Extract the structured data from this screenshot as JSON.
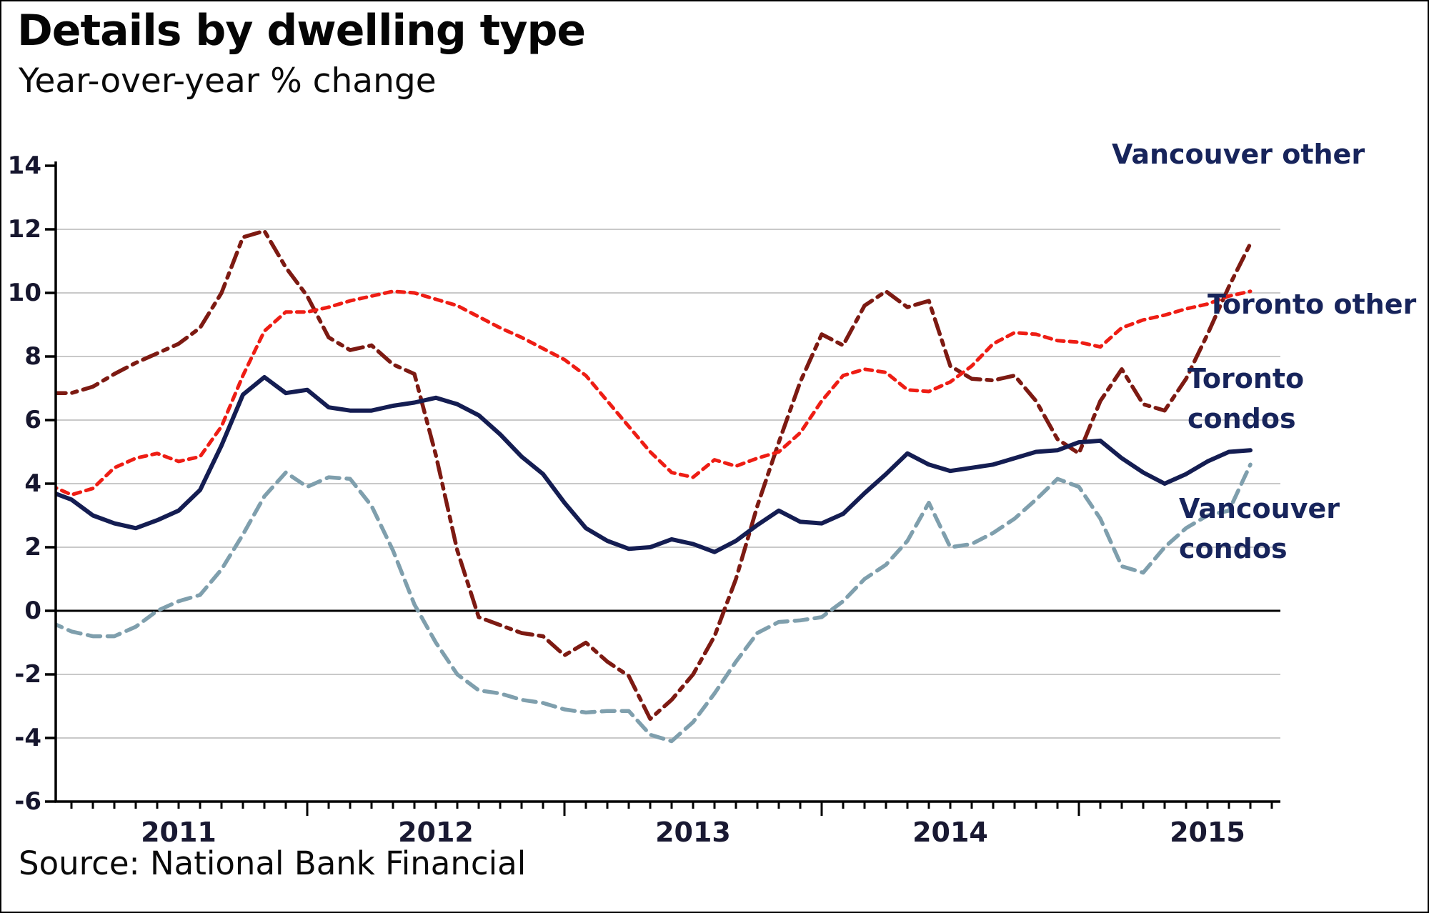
{
  "header": {
    "title": "Details by dwelling type",
    "subtitle": "Year-over-year % change"
  },
  "footer": {
    "source": "Source: National Bank Financial"
  },
  "legend": {
    "vancouver_other": "Vancouver other",
    "toronto_other": "Toronto other",
    "toronto_condos": "Toronto\ncondos",
    "vancouver_condos": "Vancouver\ncondos"
  },
  "chart_data": {
    "type": "line",
    "title": "Details by dwelling type",
    "subtitle": "Year-over-year % change",
    "ylabel": "Year-over-year % change",
    "xlabel": "",
    "ylim": [
      -6,
      14
    ],
    "y_tick_step": 2,
    "y_ticks": [
      14,
      12,
      10,
      8,
      6,
      4,
      2,
      0,
      -2,
      -4,
      -6
    ],
    "y_tick_labels": [
      "14",
      "12",
      "10",
      "8",
      "6",
      "4",
      "2",
      "0",
      "-2",
      "-4",
      "-6"
    ],
    "grid": true,
    "zero_line": true,
    "legend_position": "right-annotations",
    "x_unit": "month",
    "x_year_labels": [
      "2011",
      "2012",
      "2013",
      "2014",
      "2015"
    ],
    "x": [
      "2011-01",
      "2011-02",
      "2011-03",
      "2011-04",
      "2011-05",
      "2011-06",
      "2011-07",
      "2011-08",
      "2011-09",
      "2011-10",
      "2011-11",
      "2011-12",
      "2012-01",
      "2012-02",
      "2012-03",
      "2012-04",
      "2012-05",
      "2012-06",
      "2012-07",
      "2012-08",
      "2012-09",
      "2012-10",
      "2012-11",
      "2012-12",
      "2013-01",
      "2013-02",
      "2013-03",
      "2013-04",
      "2013-05",
      "2013-06",
      "2013-07",
      "2013-08",
      "2013-09",
      "2013-10",
      "2013-11",
      "2013-12",
      "2014-01",
      "2014-02",
      "2014-03",
      "2014-04",
      "2014-05",
      "2014-06",
      "2014-07",
      "2014-08",
      "2014-09",
      "2014-10",
      "2014-11",
      "2014-12",
      "2015-01",
      "2015-02",
      "2015-03",
      "2015-04",
      "2015-05",
      "2015-06",
      "2015-07",
      "2015-08",
      "2015-09"
    ],
    "series": [
      {
        "name": "Vancouver other",
        "color": "#7d1a12",
        "style": "dash-dot",
        "dash": "22 9 7 9",
        "width": 5.5,
        "values": [
          6.85,
          6.85,
          7.05,
          7.45,
          7.8,
          8.1,
          8.4,
          8.9,
          10.0,
          11.75,
          11.95,
          10.8,
          9.9,
          8.6,
          8.2,
          8.35,
          7.75,
          7.45,
          4.9,
          1.9,
          -0.2,
          -0.45,
          -0.7,
          -0.8,
          -1.4,
          -1.0,
          -1.6,
          -2.05,
          -3.4,
          -2.8,
          -2.0,
          -0.8,
          1.0,
          3.3,
          5.3,
          7.2,
          8.7,
          8.35,
          9.6,
          10.05,
          9.55,
          9.75,
          7.7,
          7.3,
          7.25,
          7.4,
          6.6,
          5.4,
          4.95,
          6.6,
          7.6,
          6.5,
          6.3,
          7.3,
          8.7,
          10.2,
          11.55
        ]
      },
      {
        "name": "Toronto other",
        "color": "#ee1d14",
        "style": "dashed",
        "dash": "10 8",
        "width": 5,
        "values": [
          3.95,
          3.65,
          3.85,
          4.5,
          4.8,
          4.95,
          4.7,
          4.85,
          5.8,
          7.4,
          8.8,
          9.4,
          9.4,
          9.55,
          9.75,
          9.9,
          10.05,
          10.0,
          9.8,
          9.6,
          9.25,
          8.9,
          8.6,
          8.25,
          7.9,
          7.4,
          6.6,
          5.8,
          5.0,
          4.35,
          4.2,
          4.75,
          4.55,
          4.8,
          5.0,
          5.6,
          6.6,
          7.4,
          7.6,
          7.5,
          6.95,
          6.9,
          7.2,
          7.7,
          8.4,
          8.75,
          8.7,
          8.5,
          8.45,
          8.3,
          8.9,
          9.15,
          9.3,
          9.5,
          9.65,
          9.9,
          10.05
        ]
      },
      {
        "name": "Toronto condos",
        "color": "#141d52",
        "style": "solid",
        "dash": "",
        "width": 6,
        "values": [
          3.75,
          3.5,
          3.0,
          2.75,
          2.6,
          2.85,
          3.15,
          3.8,
          5.2,
          6.8,
          7.35,
          6.85,
          6.95,
          6.4,
          6.3,
          6.3,
          6.45,
          6.55,
          6.7,
          6.5,
          6.15,
          5.55,
          4.85,
          4.3,
          3.4,
          2.6,
          2.2,
          1.95,
          2.0,
          2.25,
          2.1,
          1.85,
          2.2,
          2.7,
          3.15,
          2.8,
          2.75,
          3.05,
          3.7,
          4.3,
          4.95,
          4.6,
          4.4,
          4.5,
          4.6,
          4.8,
          5.0,
          5.05,
          5.3,
          5.35,
          4.8,
          4.35,
          4.0,
          4.3,
          4.7,
          5.0,
          5.05
        ]
      },
      {
        "name": "Vancouver condos",
        "color": "#7f9fad",
        "style": "dashed",
        "dash": "18 10",
        "width": 5.5,
        "values": [
          -0.35,
          -0.65,
          -0.8,
          -0.8,
          -0.5,
          0.0,
          0.3,
          0.5,
          1.3,
          2.4,
          3.6,
          4.35,
          3.9,
          4.2,
          4.15,
          3.3,
          1.9,
          0.2,
          -1.0,
          -2.0,
          -2.5,
          -2.6,
          -2.8,
          -2.9,
          -3.1,
          -3.2,
          -3.15,
          -3.15,
          -3.9,
          -4.1,
          -3.5,
          -2.6,
          -1.6,
          -0.7,
          -0.35,
          -0.3,
          -0.2,
          0.3,
          1.0,
          1.45,
          2.2,
          3.4,
          2.0,
          2.1,
          2.45,
          2.9,
          3.5,
          4.15,
          3.9,
          2.9,
          1.4,
          1.2,
          2.0,
          2.6,
          3.0,
          3.15,
          4.6
        ]
      }
    ],
    "colors": {
      "grid": "#c9c9c9",
      "axis": "#000000",
      "zero_line": "#000000",
      "axis_label": "#16162e",
      "legend_text": "#17245b"
    }
  }
}
